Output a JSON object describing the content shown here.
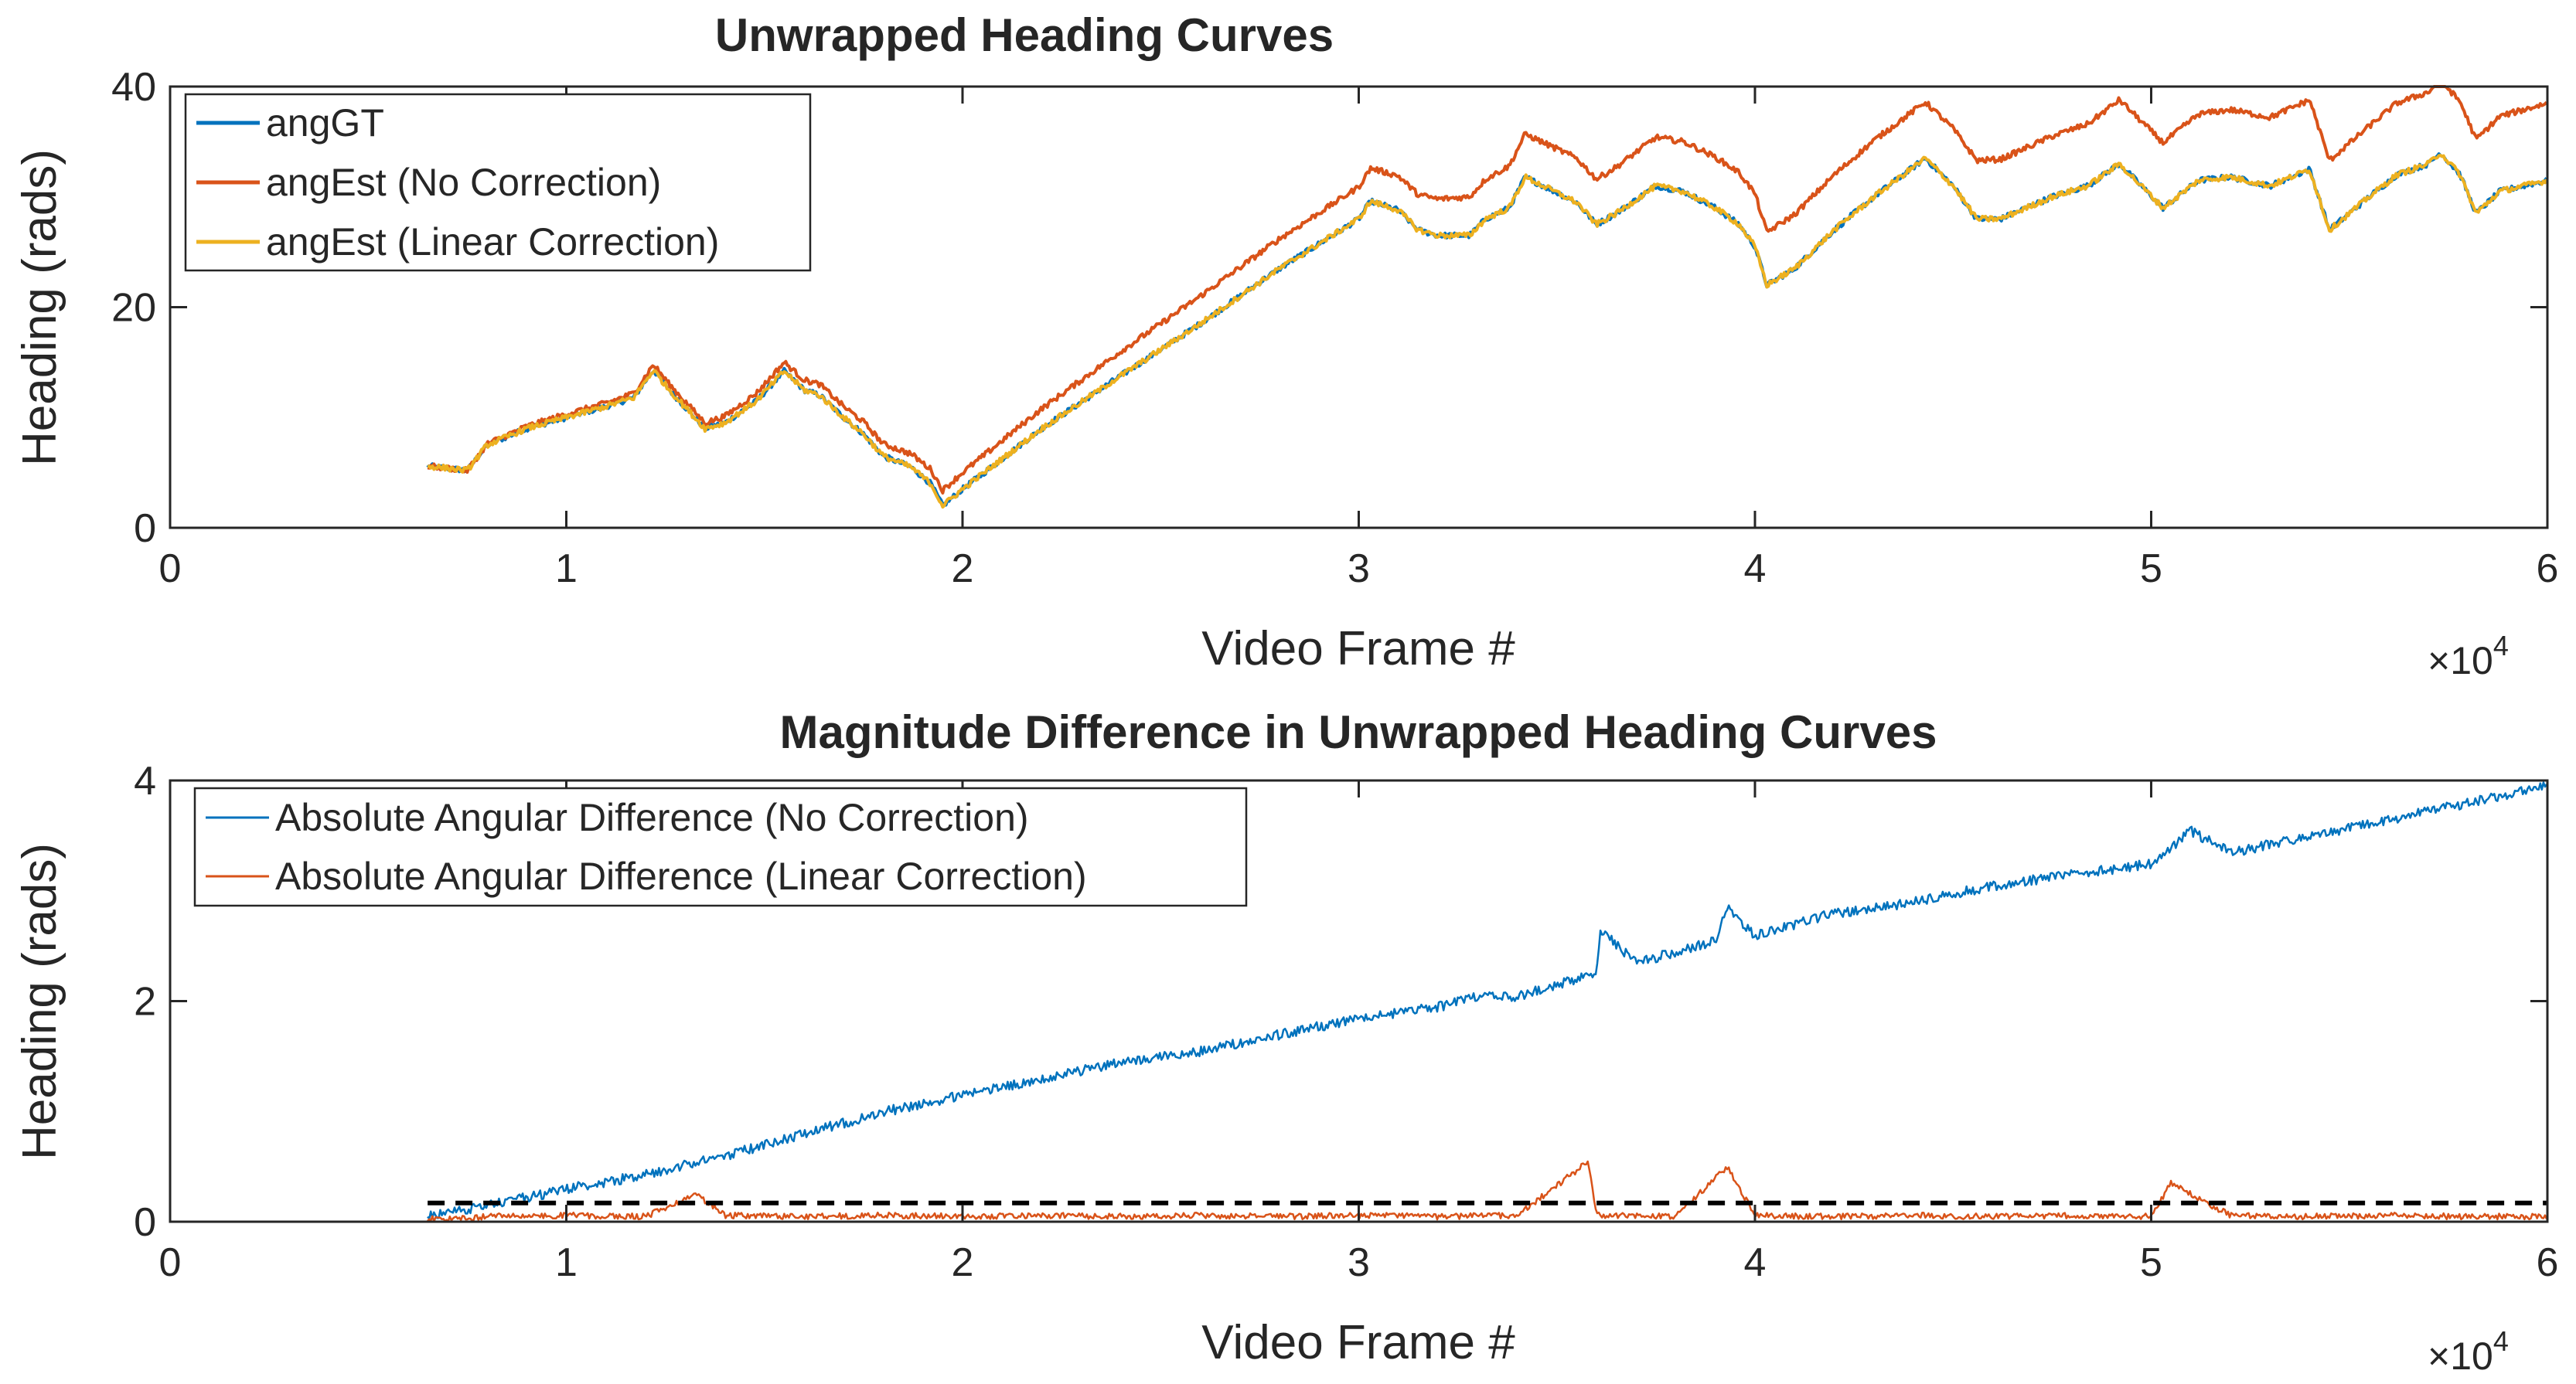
{
  "colors": {
    "angGT": "#0072bd",
    "angEst_no_correction": "#d95319",
    "angEst_linear_correction": "#edb120",
    "abs_diff_no_correction": "#0072bd",
    "abs_diff_linear_correction": "#d95319",
    "threshold": "#000000",
    "axes": "#262626",
    "background": "#ffffff"
  },
  "chart_data": [
    {
      "type": "line",
      "title": "Unwrapped Heading Curves",
      "xlabel": "Video Frame #",
      "ylabel": "Heading (rads)",
      "x_exponent": "×10",
      "x_exponent_power": "4",
      "xlim": [
        0,
        60000
      ],
      "ylim": [
        0,
        40
      ],
      "xticks": [
        "0",
        "1",
        "2",
        "3",
        "4",
        "5",
        "6"
      ],
      "yticks": [
        "0",
        "20",
        "40"
      ],
      "grid": false,
      "legend_position": "top-left",
      "series": [
        {
          "name": "angGT",
          "x": [
            6500,
            7500,
            8000,
            9000,
            10000,
            11000,
            11700,
            12200,
            12600,
            13500,
            14000,
            14800,
            15500,
            16000,
            16400,
            17000,
            17500,
            18000,
            18700,
            19200,
            19500,
            20000,
            22000,
            24000,
            26000,
            28000,
            30000,
            30300,
            31000,
            31500,
            32000,
            32800,
            33200,
            33800,
            34200,
            35500,
            36000,
            36500,
            37500,
            38200,
            39000,
            39600,
            40000,
            40300,
            41000,
            42000,
            43000,
            44300,
            45000,
            45600,
            46200,
            47500,
            48400,
            49200,
            50300,
            51200,
            52000,
            53000,
            54000,
            54500,
            55500,
            56200,
            57000,
            57300,
            57800,
            58200,
            58800,
            60000
          ],
          "y": [
            5.6,
            5.2,
            7.5,
            9.0,
            10.0,
            11.0,
            11.8,
            14.3,
            12.5,
            9.0,
            9.5,
            11.5,
            14.2,
            12.5,
            12.0,
            10.0,
            8.5,
            6.5,
            5.5,
            4.0,
            2.0,
            3.5,
            9.0,
            13.8,
            18.5,
            23.5,
            28.0,
            29.6,
            28.8,
            27.0,
            26.5,
            26.5,
            28.0,
            29.0,
            31.8,
            29.5,
            27.5,
            28.5,
            31.0,
            30.5,
            29.0,
            27.5,
            25.5,
            22.0,
            23.5,
            27.0,
            30.0,
            33.5,
            31.0,
            28.0,
            28.0,
            30.0,
            31.0,
            33.0,
            29.0,
            31.5,
            31.8,
            31.0,
            32.5,
            27.0,
            30.0,
            32.0,
            33.0,
            34.0,
            32.0,
            28.5,
            30.5,
            31.5
          ]
        },
        {
          "name": "angEst (No Correction)",
          "x": [
            6500,
            7500,
            8000,
            9000,
            10000,
            11000,
            11700,
            12200,
            12600,
            13500,
            14000,
            14800,
            15500,
            16000,
            16400,
            17000,
            17500,
            18000,
            18700,
            19200,
            19500,
            20000,
            22000,
            24000,
            26000,
            28000,
            30000,
            30300,
            31000,
            31500,
            32000,
            32800,
            33200,
            33800,
            34200,
            35500,
            36000,
            36500,
            37500,
            38200,
            39000,
            39600,
            40000,
            40300,
            41000,
            42000,
            43000,
            44300,
            45000,
            45600,
            46200,
            47500,
            48400,
            49200,
            50300,
            51200,
            52000,
            53000,
            54000,
            54500,
            55500,
            56200,
            57000,
            57300,
            57800,
            58200,
            58800,
            60000
          ],
          "y": [
            5.6,
            5.2,
            7.6,
            9.2,
            10.3,
            11.3,
            12.2,
            14.8,
            13.0,
            9.5,
            10.1,
            12.2,
            15.0,
            13.4,
            13.0,
            11.0,
            9.6,
            7.6,
            6.7,
            5.3,
            3.4,
            5.0,
            10.8,
            16.0,
            21.0,
            26.2,
            30.9,
            32.6,
            31.9,
            30.2,
            29.8,
            30.0,
            31.6,
            32.8,
            35.7,
            33.5,
            31.6,
            32.7,
            35.4,
            35.0,
            33.6,
            32.2,
            30.3,
            26.8,
            28.4,
            32.0,
            35.1,
            38.6,
            36.2,
            33.3,
            33.4,
            35.5,
            36.6,
            38.8,
            34.9,
            37.5,
            37.9,
            37.2,
            38.8,
            33.3,
            36.4,
            38.5,
            39.5,
            40.6,
            38.6,
            35.2,
            37.3,
            38.5
          ]
        },
        {
          "name": "angEst (Linear Correction)",
          "x": [
            6500,
            7500,
            8000,
            9000,
            10000,
            11000,
            11700,
            12200,
            12600,
            13500,
            14000,
            14800,
            15500,
            16000,
            16400,
            17000,
            17500,
            18000,
            18700,
            19200,
            19500,
            20000,
            22000,
            24000,
            26000,
            28000,
            30000,
            30300,
            31000,
            31500,
            32000,
            32800,
            33200,
            33800,
            34200,
            35500,
            36000,
            36500,
            37500,
            38200,
            39000,
            39600,
            40000,
            40300,
            41000,
            42000,
            43000,
            44300,
            45000,
            45600,
            46200,
            47500,
            48400,
            49200,
            50300,
            51200,
            52000,
            53000,
            54000,
            54500,
            55500,
            56200,
            57000,
            57300,
            57800,
            58200,
            58800,
            60000
          ],
          "y": [
            5.6,
            5.2,
            7.5,
            9.0,
            10.0,
            11.0,
            11.8,
            14.3,
            12.5,
            9.0,
            9.5,
            11.5,
            14.2,
            12.5,
            12.0,
            10.0,
            8.5,
            6.5,
            5.5,
            4.0,
            2.0,
            3.5,
            9.0,
            13.8,
            18.5,
            23.5,
            28.0,
            29.6,
            28.8,
            27.0,
            26.5,
            26.5,
            28.0,
            29.0,
            31.8,
            29.5,
            27.5,
            28.5,
            31.0,
            30.5,
            29.0,
            27.5,
            25.5,
            22.0,
            23.5,
            27.0,
            30.0,
            33.5,
            31.0,
            28.0,
            28.0,
            30.0,
            31.0,
            33.0,
            29.0,
            31.5,
            31.8,
            31.0,
            32.5,
            27.0,
            30.0,
            32.0,
            33.0,
            34.0,
            32.0,
            28.5,
            30.5,
            31.5
          ]
        }
      ]
    },
    {
      "type": "line",
      "title": "Magnitude Difference in Unwrapped Heading Curves",
      "xlabel": "Video Frame #",
      "ylabel": "Heading (rads)",
      "x_exponent": "×10",
      "x_exponent_power": "4",
      "xlim": [
        0,
        60000
      ],
      "ylim": [
        0,
        4
      ],
      "xticks": [
        "0",
        "1",
        "2",
        "3",
        "4",
        "5",
        "6"
      ],
      "yticks": [
        "0",
        "2",
        "4"
      ],
      "grid": false,
      "legend_position": "top-left",
      "threshold": {
        "y": 0.17,
        "style": "dashed",
        "x_start": 6500,
        "x_end": 60000
      },
      "series": [
        {
          "name": "Absolute Angular Difference (No Correction)",
          "x": [
            6500,
            8000,
            10000,
            12000,
            14000,
            16000,
            18000,
            20000,
            22000,
            24000,
            26000,
            28000,
            30000,
            32000,
            33000,
            34000,
            35000,
            36000,
            36100,
            37000,
            38000,
            39000,
            39300,
            40000,
            42000,
            44000,
            46000,
            48000,
            50000,
            51000,
            52000,
            54000,
            56000,
            58000,
            60000
          ],
          "y": [
            0.0,
            0.1,
            0.25,
            0.38,
            0.55,
            0.75,
            0.95,
            1.1,
            1.25,
            1.4,
            1.5,
            1.65,
            1.8,
            1.9,
            2.0,
            2.0,
            2.1,
            2.2,
            2.6,
            2.3,
            2.4,
            2.5,
            2.8,
            2.55,
            2.75,
            2.85,
            3.0,
            3.1,
            3.2,
            3.5,
            3.3,
            3.45,
            3.6,
            3.75,
            3.9
          ]
        },
        {
          "name": "Absolute Angular Difference (Linear Correction)",
          "x": [
            6500,
            8000,
            10000,
            12000,
            13300,
            14000,
            16000,
            18000,
            20000,
            22000,
            24000,
            26000,
            28000,
            30000,
            32000,
            34000,
            35800,
            36000,
            38000,
            39300,
            40000,
            42000,
            44000,
            46000,
            48000,
            50000,
            50500,
            52000,
            54000,
            56000,
            58000,
            60000
          ],
          "y": [
            0.0,
            0.05,
            0.06,
            0.05,
            0.25,
            0.06,
            0.05,
            0.06,
            0.05,
            0.06,
            0.05,
            0.06,
            0.05,
            0.06,
            0.05,
            0.06,
            0.55,
            0.06,
            0.05,
            0.5,
            0.06,
            0.05,
            0.06,
            0.05,
            0.06,
            0.05,
            0.35,
            0.06,
            0.05,
            0.06,
            0.05,
            0.05
          ]
        }
      ]
    }
  ]
}
